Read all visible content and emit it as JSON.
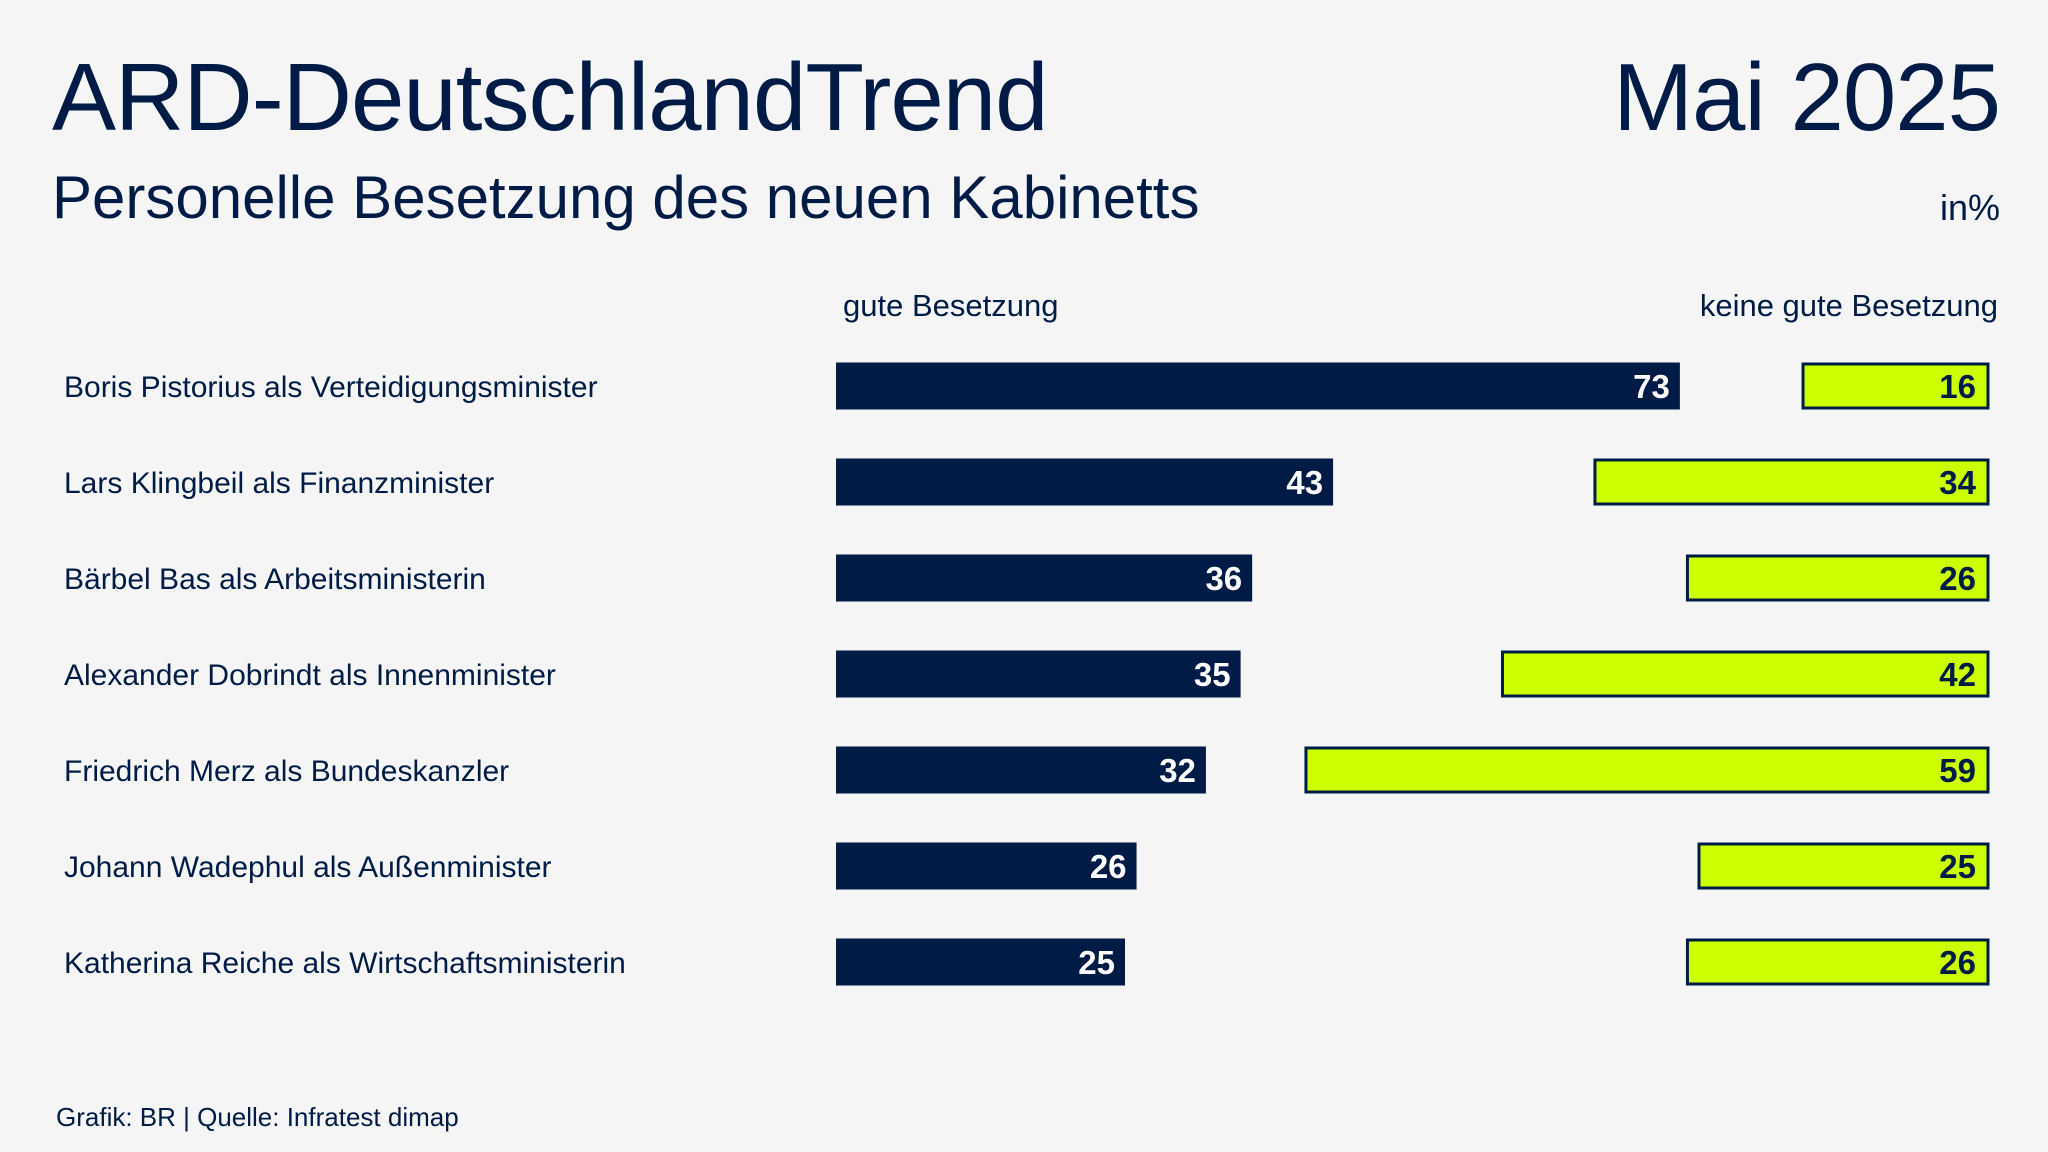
{
  "header": {
    "title": "ARD-DeutschlandTrend",
    "date": "Mai 2025",
    "subtitle": "Personelle Besetzung des neuen Kabinetts",
    "unit": "in%"
  },
  "footer": {
    "source": "Grafik: BR | Quelle: Infratest dimap"
  },
  "colors": {
    "navy": "#001c46",
    "lime": "#ccff00",
    "background": "#f5f5f5"
  },
  "chart_data": {
    "type": "bar",
    "orientation": "horizontal",
    "categories": [
      "Boris Pistorius als Verteidigungsminister",
      "Lars Klingbeil als Finanzminister",
      "Bärbel Bas als Arbeitsministerin",
      "Alexander Dobrindt als Innenminister",
      "Friedrich Merz als Bundeskanzler",
      "Johann Wadephul als Außenminister",
      "Katherina Reiche als Wirtschaftsministerin"
    ],
    "series": [
      {
        "name": "gute Besetzung",
        "values": [
          73,
          43,
          36,
          35,
          32,
          26,
          25
        ],
        "color": "#001c46"
      },
      {
        "name": "keine gute Besetzung",
        "values": [
          16,
          34,
          26,
          42,
          59,
          25,
          26
        ],
        "color": "#ccff00"
      }
    ],
    "data_labels": true,
    "legend": "top"
  }
}
